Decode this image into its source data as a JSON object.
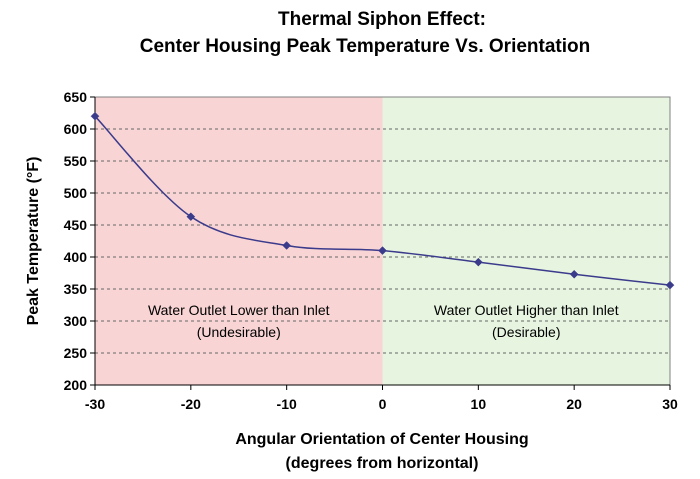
{
  "chart_data": {
    "type": "line",
    "title": "Thermal Siphon Effect:",
    "subtitle": "Center Housing Peak Temperature Vs. Orientation",
    "xlabel": "Angular Orientation of Center Housing",
    "xlabel_sub": "(degrees from horizontal)",
    "ylabel": "Peak Temperature (°F)",
    "xlim": [
      -30,
      30
    ],
    "ylim": [
      200,
      650
    ],
    "x_ticks": [
      -30,
      -20,
      -10,
      0,
      10,
      20,
      30
    ],
    "y_ticks": [
      200,
      250,
      300,
      350,
      400,
      450,
      500,
      550,
      600,
      650
    ],
    "grid": "horizontal dashed",
    "x": [
      -30,
      -20,
      -10,
      0,
      10,
      20,
      30
    ],
    "series": [
      {
        "values": [
          620,
          463,
          418,
          410,
          392,
          373,
          356
        ],
        "color": "#3b3b8c"
      }
    ],
    "regions": [
      {
        "from": -30,
        "to": 0,
        "color": "#f9d4d4",
        "line1": "Water Outlet Lower than Inlet",
        "line2": "(Undesirable)"
      },
      {
        "from": 0,
        "to": 30,
        "color": "#e6f4e0",
        "line1": "Water Outlet Higher than Inlet",
        "line2": "(Desirable)"
      }
    ]
  }
}
